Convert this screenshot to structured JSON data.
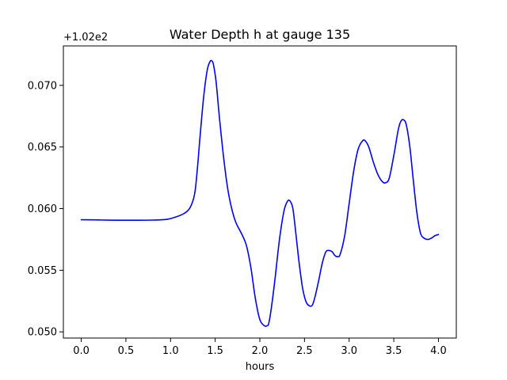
{
  "chart_data": {
    "type": "line",
    "title": "Water Depth h at gauge 135",
    "xlabel": "hours",
    "ylabel": "",
    "y_offset_label": "+1.02e2",
    "xlim": [
      -0.2,
      4.2
    ],
    "ylim": [
      0.0495,
      0.0732
    ],
    "x_ticks": [
      0.0,
      0.5,
      1.0,
      1.5,
      2.0,
      2.5,
      3.0,
      3.5,
      4.0
    ],
    "x_tick_labels": [
      "0.0",
      "0.5",
      "1.0",
      "1.5",
      "2.0",
      "2.5",
      "3.0",
      "3.5",
      "4.0"
    ],
    "y_ticks": [
      0.05,
      0.055,
      0.06,
      0.065,
      0.07
    ],
    "y_tick_labels": [
      "0.050",
      "0.055",
      "0.060",
      "0.065",
      "0.070"
    ],
    "grid": false,
    "series": [
      {
        "color": "#0000ff",
        "x": [
          0.0,
          0.2,
          0.4,
          0.6,
          0.8,
          0.95,
          1.05,
          1.15,
          1.22,
          1.27,
          1.3,
          1.33,
          1.37,
          1.41,
          1.44,
          1.46,
          1.48,
          1.51,
          1.55,
          1.6,
          1.65,
          1.72,
          1.8,
          1.85,
          1.9,
          1.95,
          2.0,
          2.05,
          2.08,
          2.1,
          2.13,
          2.17,
          2.22,
          2.27,
          2.31,
          2.34,
          2.37,
          2.4,
          2.44,
          2.48,
          2.52,
          2.56,
          2.59,
          2.62,
          2.66,
          2.7,
          2.74,
          2.78,
          2.81,
          2.84,
          2.87,
          2.9,
          2.95,
          3.0,
          3.05,
          3.1,
          3.15,
          3.18,
          3.22,
          3.27,
          3.32,
          3.37,
          3.41,
          3.45,
          3.5,
          3.55,
          3.58,
          3.61,
          3.64,
          3.68,
          3.72,
          3.76,
          3.8,
          3.84,
          3.88,
          3.92,
          3.96,
          4.0
        ],
        "y": [
          0.0591,
          0.05908,
          0.05906,
          0.05906,
          0.05907,
          0.05912,
          0.0593,
          0.0596,
          0.0601,
          0.0612,
          0.0632,
          0.0658,
          0.069,
          0.0712,
          0.0719,
          0.072,
          0.0717,
          0.0703,
          0.0672,
          0.0638,
          0.0612,
          0.0591,
          0.0579,
          0.057,
          0.0552,
          0.0527,
          0.051,
          0.0505,
          0.0505,
          0.0507,
          0.052,
          0.0543,
          0.0575,
          0.0598,
          0.0606,
          0.0606,
          0.06,
          0.0582,
          0.0556,
          0.0535,
          0.0524,
          0.0521,
          0.0522,
          0.0529,
          0.0542,
          0.0556,
          0.0565,
          0.0566,
          0.0565,
          0.0562,
          0.0561,
          0.0563,
          0.0578,
          0.0604,
          0.063,
          0.0648,
          0.0655,
          0.0655,
          0.065,
          0.0638,
          0.0628,
          0.0622,
          0.0621,
          0.0625,
          0.0643,
          0.0664,
          0.0671,
          0.0672,
          0.0668,
          0.065,
          0.0622,
          0.0596,
          0.058,
          0.0576,
          0.0575,
          0.0576,
          0.0578,
          0.0579
        ]
      }
    ]
  }
}
